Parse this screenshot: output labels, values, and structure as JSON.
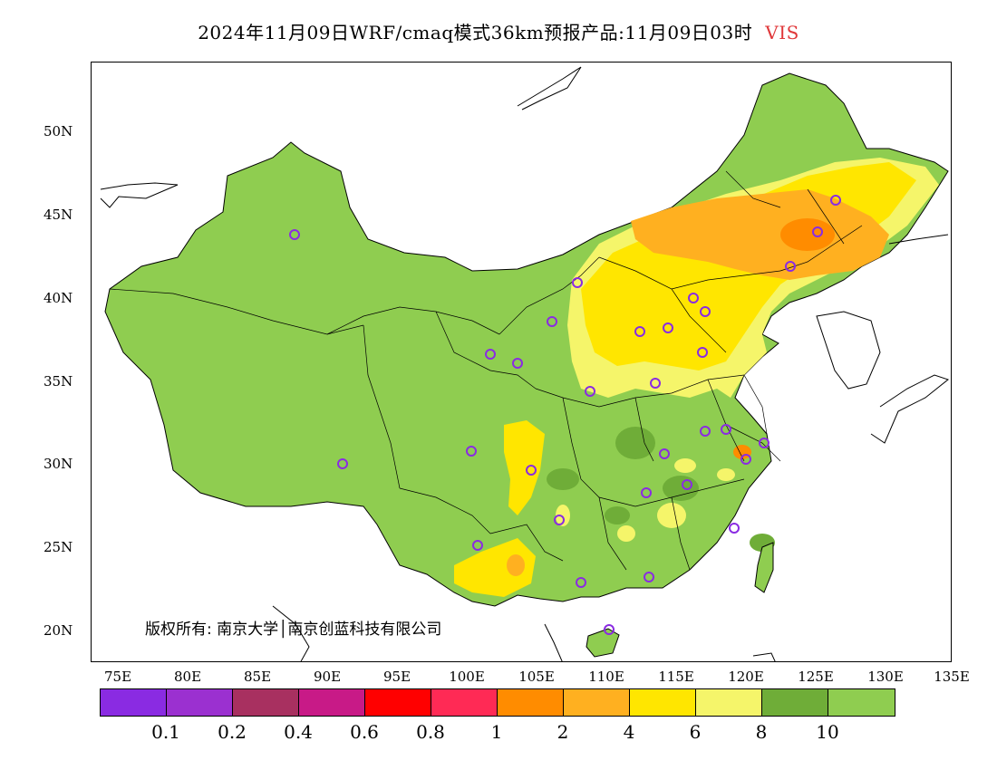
{
  "title": {
    "text": "2024年11月09日WRF/cmaq模式36km预报产品:11月09日03时",
    "variable": "VIS"
  },
  "axes": {
    "lat_labels": [
      "50N",
      "45N",
      "40N",
      "35N",
      "30N",
      "25N",
      "20N"
    ],
    "lon_labels": [
      "75E",
      "80E",
      "85E",
      "90E",
      "95E",
      "100E",
      "105E",
      "110E",
      "115E",
      "120E",
      "125E",
      "130E",
      "135E"
    ]
  },
  "legend": {
    "colors": [
      "#8a2be2",
      "#9b30d0",
      "#a83060",
      "#c81a87",
      "#ff0000",
      "#ff2a55",
      "#ff8c00",
      "#ffb020",
      "#ffe600",
      "#f5f56a",
      "#6fad38",
      "#8fcd50"
    ],
    "tick_labels": [
      "0.1",
      "0.2",
      "0.4",
      "0.6",
      "0.8",
      "1",
      "2",
      "4",
      "6",
      "8",
      "10"
    ]
  },
  "copyright": "版权所有: 南京大学│南京创蓝科技有限公司",
  "map_colors": {
    "land_base": "#8fcd50",
    "land_dark": "#6fad38",
    "yellow_light": "#f5f56a",
    "yellow": "#ffe600",
    "orange": "#ffb020",
    "orange_dark": "#ff8c00",
    "station": "#8a2be2",
    "border": "#000000"
  }
}
